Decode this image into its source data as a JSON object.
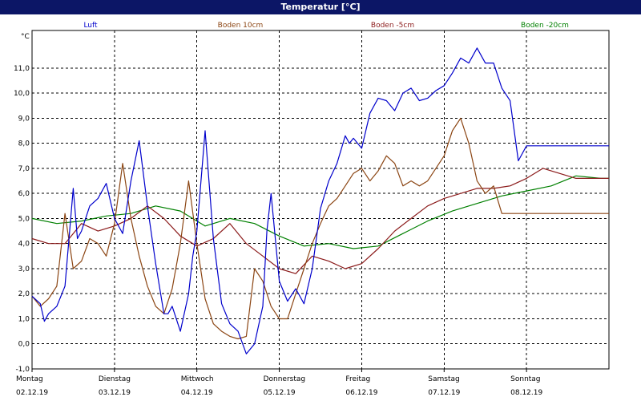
{
  "window": {
    "title": "Temperatur [°C]"
  },
  "colors": {
    "titlebar": "#0c1666",
    "grid": "#000000"
  },
  "chart_data": {
    "type": "line",
    "title": "Temperatur [°C]",
    "ylabel": "°C",
    "ylim": [
      -1.0,
      12.5
    ],
    "yticks": [
      -1.0,
      0.0,
      1.0,
      2.0,
      3.0,
      4.0,
      5.0,
      6.0,
      7.0,
      8.0,
      9.0,
      10.0,
      11.0
    ],
    "ytick_labels": [
      "-1,0",
      "0,0",
      "1,0",
      "2,0",
      "3,0",
      "4,0",
      "5,0",
      "6,0",
      "7,0",
      "8,0",
      "9,0",
      "10,0",
      "11,0"
    ],
    "xlim": [
      0,
      7
    ],
    "x_day_labels": [
      "Montag",
      "Dienstag",
      "Mittwoch",
      "Donnerstag",
      "Freitag",
      "Samstag",
      "Sonntag"
    ],
    "x_date_labels": [
      "02.12.19",
      "03.12.19",
      "04.12.19",
      "05.12.19",
      "06.12.19",
      "07.12.19",
      "08.12.19"
    ],
    "grid": true,
    "legend_position": "top",
    "series": [
      {
        "name": "Luft",
        "color": "#0000cc",
        "x": [
          0.0,
          0.1,
          0.15,
          0.2,
          0.3,
          0.4,
          0.5,
          0.55,
          0.6,
          0.7,
          0.8,
          0.9,
          1.0,
          1.1,
          1.2,
          1.3,
          1.4,
          1.5,
          1.6,
          1.65,
          1.7,
          1.8,
          1.9,
          1.95,
          2.0,
          2.1,
          2.2,
          2.3,
          2.4,
          2.5,
          2.6,
          2.7,
          2.8,
          2.85,
          2.9,
          3.0,
          3.1,
          3.2,
          3.3,
          3.4,
          3.5,
          3.6,
          3.7,
          3.8,
          3.85,
          3.9,
          4.0,
          4.1,
          4.2,
          4.3,
          4.4,
          4.5,
          4.6,
          4.7,
          4.8,
          4.9,
          5.0,
          5.1,
          5.2,
          5.3,
          5.4,
          5.5,
          5.6,
          5.7,
          5.8,
          5.9,
          6.0,
          6.1,
          6.2,
          6.3,
          6.4,
          6.45,
          6.5,
          6.6,
          6.7,
          6.8,
          6.9,
          6.95,
          7.0
        ],
        "y": [
          1.9,
          1.6,
          0.9,
          1.2,
          1.5,
          2.3,
          6.2,
          4.2,
          4.5,
          5.5,
          5.8,
          6.4,
          5.0,
          4.4,
          6.5,
          8.1,
          5.5,
          3.2,
          1.2,
          1.2,
          1.5,
          0.5,
          2.0,
          3.5,
          4.5,
          8.5,
          4.2,
          1.6,
          0.8,
          0.5,
          -0.4,
          0.0,
          1.5,
          4.5,
          6.0,
          2.5,
          1.7,
          2.2,
          1.6,
          3.0,
          5.4,
          6.5,
          7.2,
          8.3,
          8.0,
          8.2,
          7.8,
          9.2,
          9.8,
          9.7,
          9.3,
          10.0,
          10.2,
          9.7,
          9.8,
          10.1,
          10.3,
          10.8,
          11.4,
          11.2,
          11.8,
          11.2,
          11.2,
          10.2,
          9.7,
          7.3,
          7.9,
          7.9,
          7.9,
          7.9,
          7.9,
          7.9,
          7.9,
          7.9,
          7.9,
          7.9,
          7.9,
          7.9,
          7.9
        ]
      },
      {
        "name": "Boden 10cm",
        "color": "#8b4513",
        "x": [
          0.0,
          0.1,
          0.2,
          0.3,
          0.4,
          0.5,
          0.6,
          0.7,
          0.8,
          0.9,
          1.0,
          1.1,
          1.2,
          1.3,
          1.4,
          1.5,
          1.6,
          1.7,
          1.8,
          1.9,
          2.0,
          2.1,
          2.2,
          2.3,
          2.4,
          2.5,
          2.6,
          2.7,
          2.8,
          2.9,
          3.0,
          3.1,
          3.2,
          3.3,
          3.4,
          3.5,
          3.6,
          3.7,
          3.8,
          3.9,
          4.0,
          4.1,
          4.2,
          4.3,
          4.4,
          4.5,
          4.6,
          4.7,
          4.8,
          4.9,
          5.0,
          5.1,
          5.2,
          5.3,
          5.4,
          5.5,
          5.6,
          5.7,
          5.8,
          5.9,
          6.0,
          6.1,
          6.2,
          6.3,
          6.4,
          6.5,
          6.6,
          6.7,
          6.8,
          6.9,
          7.0
        ],
        "y": [
          1.9,
          1.5,
          1.8,
          2.3,
          5.2,
          3.0,
          3.3,
          4.2,
          4.0,
          3.5,
          4.8,
          7.2,
          5.0,
          3.5,
          2.3,
          1.5,
          1.2,
          2.2,
          4.0,
          6.5,
          4.0,
          1.8,
          0.8,
          0.5,
          0.3,
          0.2,
          0.3,
          3.0,
          2.5,
          1.5,
          1.0,
          1.0,
          2.0,
          3.0,
          4.0,
          4.8,
          5.5,
          5.8,
          6.3,
          6.8,
          7.0,
          6.5,
          6.9,
          7.5,
          7.2,
          6.3,
          6.5,
          6.3,
          6.5,
          7.0,
          7.5,
          8.5,
          9.0,
          8.0,
          6.5,
          6.0,
          6.3,
          5.2,
          5.2,
          5.2,
          5.2,
          5.2,
          5.2,
          5.2,
          5.2,
          5.2,
          5.2,
          5.2,
          5.2,
          5.2,
          5.2
        ]
      },
      {
        "name": "Boden -5cm",
        "color": "#8b1a1a",
        "x": [
          0.0,
          0.2,
          0.4,
          0.6,
          0.8,
          1.0,
          1.2,
          1.4,
          1.6,
          1.8,
          2.0,
          2.2,
          2.4,
          2.6,
          2.8,
          3.0,
          3.2,
          3.4,
          3.6,
          3.8,
          4.0,
          4.2,
          4.4,
          4.6,
          4.8,
          5.0,
          5.2,
          5.4,
          5.6,
          5.8,
          6.0,
          6.2,
          6.4,
          6.6,
          6.8,
          7.0
        ],
        "y": [
          4.2,
          4.0,
          4.0,
          4.8,
          4.5,
          4.7,
          5.0,
          5.5,
          5.0,
          4.3,
          3.9,
          4.2,
          4.8,
          4.0,
          3.5,
          3.0,
          2.8,
          3.5,
          3.3,
          3.0,
          3.2,
          3.8,
          4.5,
          5.0,
          5.5,
          5.8,
          6.0,
          6.2,
          6.2,
          6.3,
          6.6,
          7.0,
          6.8,
          6.6,
          6.6,
          6.6
        ]
      },
      {
        "name": "Boden -20cm",
        "color": "#008000",
        "x": [
          0.0,
          0.3,
          0.6,
          0.9,
          1.2,
          1.5,
          1.8,
          2.1,
          2.4,
          2.7,
          3.0,
          3.3,
          3.6,
          3.9,
          4.2,
          4.5,
          4.8,
          5.1,
          5.4,
          5.7,
          6.0,
          6.3,
          6.6,
          6.9,
          7.0
        ],
        "y": [
          5.0,
          4.8,
          4.9,
          5.1,
          5.2,
          5.5,
          5.3,
          4.7,
          5.0,
          4.8,
          4.3,
          3.9,
          4.0,
          3.8,
          3.9,
          4.4,
          4.9,
          5.3,
          5.6,
          5.9,
          6.1,
          6.3,
          6.7,
          6.6,
          6.6
        ]
      }
    ]
  }
}
